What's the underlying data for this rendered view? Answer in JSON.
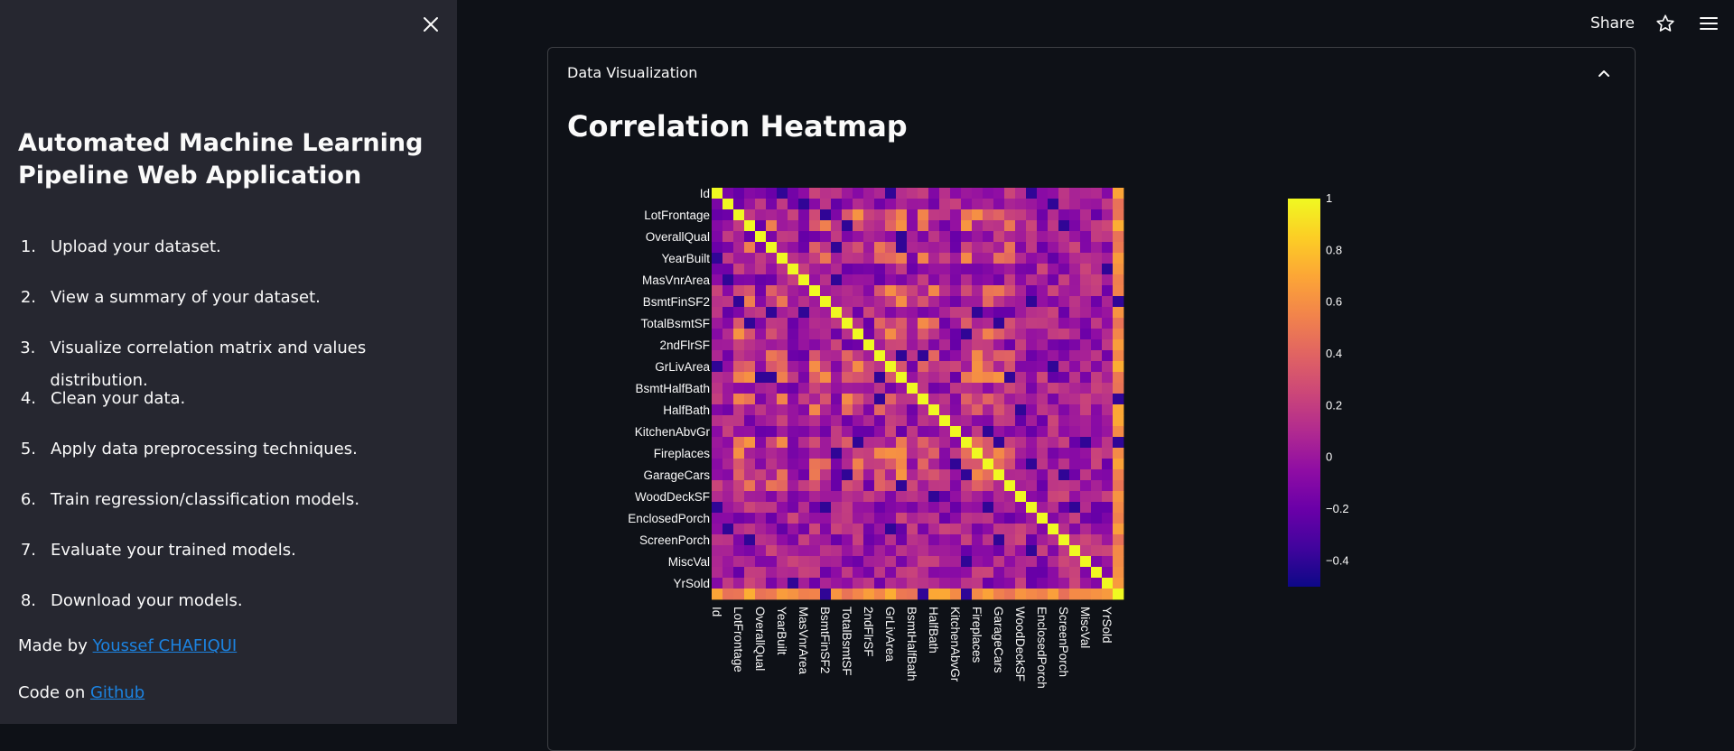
{
  "sidebar": {
    "title": "Automated Machine Learning Pipeline Web Application",
    "steps": [
      {
        "num": "1.",
        "label": "Upload your dataset."
      },
      {
        "num": "2.",
        "label": "View a summary of your dataset."
      },
      {
        "num": "3.",
        "label": "Visualize correlation matrix and values distribution."
      },
      {
        "num": "4.",
        "label": "Clean your data."
      },
      {
        "num": "5.",
        "label": "Apply data preprocessing techniques."
      },
      {
        "num": "6.",
        "label": "Train regression/classification models."
      },
      {
        "num": "7.",
        "label": "Evaluate your trained models."
      },
      {
        "num": "8.",
        "label": "Download your models."
      }
    ],
    "made_by_prefix": "Made by ",
    "made_by_link": "Youssef CHAFIQUI",
    "code_prefix": "Code on ",
    "code_link": "Github"
  },
  "topbar": {
    "share_label": "Share"
  },
  "expander": {
    "label": "Data Visualization"
  },
  "section": {
    "title": "Correlation Heatmap"
  },
  "chart_data": {
    "type": "heatmap",
    "labels": [
      "Id",
      "LotFrontage",
      "OverallQual",
      "YearBuilt",
      "MasVnrArea",
      "BsmtFinSF2",
      "TotalBsmtSF",
      "2ndFlrSF",
      "GrLivArea",
      "BsmtHalfBath",
      "HalfBath",
      "KitchenAbvGr",
      "Fireplaces",
      "GarageCars",
      "WoodDeckSF",
      "EnclosedPorch",
      "ScreenPorch",
      "MiscVal",
      "YrSold"
    ],
    "matrix_size": 38,
    "colorscale": "plasma",
    "zlim": [
      -0.5,
      1
    ],
    "colorbar_ticks": [
      {
        "value": 1,
        "label": "1"
      },
      {
        "value": 0.8,
        "label": "0.8"
      },
      {
        "value": 0.6,
        "label": "0.6"
      },
      {
        "value": 0.4,
        "label": "0.4"
      },
      {
        "value": 0.2,
        "label": "0.2"
      },
      {
        "value": 0,
        "label": "0"
      },
      {
        "value": -0.2,
        "label": "−0.2"
      },
      {
        "value": -0.4,
        "label": "−0.4"
      }
    ],
    "diagonal_value": 1
  }
}
